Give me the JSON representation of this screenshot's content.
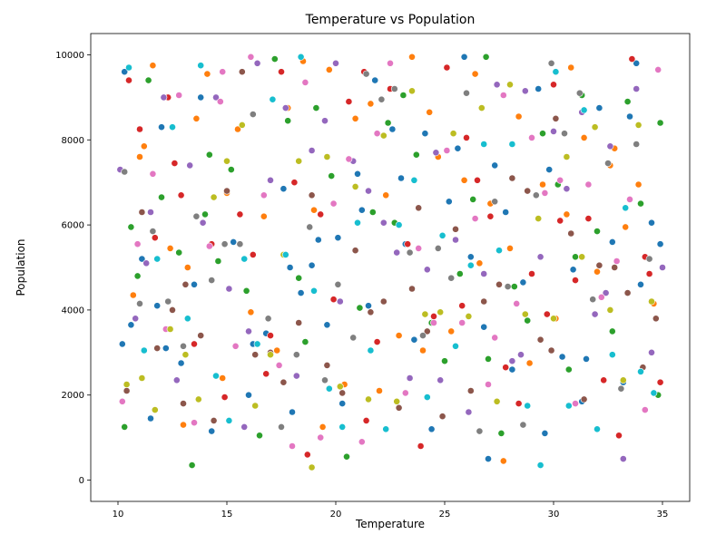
{
  "chart_data": {
    "type": "scatter",
    "title": "Temperature vs Population",
    "xlabel": "Temperature",
    "ylabel": "Population",
    "xlim": [
      8.75,
      36.25
    ],
    "ylim": [
      -500,
      10500
    ],
    "xticks": [
      10,
      15,
      20,
      25,
      30,
      35
    ],
    "yticks": [
      0,
      2000,
      4000,
      6000,
      8000,
      10000
    ],
    "grid": false,
    "legend": "none",
    "colors": [
      "#1f77b4",
      "#ff7f0e",
      "#2ca02c",
      "#d62728",
      "#9467bd",
      "#8c564b",
      "#e377c2",
      "#7f7f7f",
      "#bcbd22",
      "#17becf"
    ],
    "series": [
      {
        "x": [
          10.2,
          10.3,
          10.6,
          11.1,
          11.5,
          12.2,
          12.9,
          13.5,
          13.8,
          14.3,
          15.3,
          16.0,
          16.2,
          17.6,
          17.9,
          18.4,
          18.9,
          19.2,
          19.6,
          20.3,
          21.0,
          21.5,
          21.8,
          22.6,
          23.2,
          23.6,
          24.1,
          24.4,
          25.2,
          25.6,
          26.2,
          26.8,
          27.3,
          27.8,
          28.1,
          28.6,
          29.3,
          29.8,
          30.4,
          30.9,
          31.3,
          32.1,
          32.7,
          33.2,
          33.8,
          34.5,
          34.9,
          12.0,
          18.0,
          23.0,
          27.0,
          31.5,
          16.8,
          21.2,
          25.9,
          29.6,
          33.5,
          11.8,
          20.1,
          34.0
        ],
        "y": [
          3200,
          9600,
          3650,
          5200,
          1450,
          3100,
          2750,
          4600,
          9000,
          1150,
          5600,
          2000,
          3200,
          6850,
          5000,
          4400,
          5050,
          5650,
          3650,
          1800,
          7200,
          4100,
          9400,
          8250,
          5550,
          3300,
          8150,
          1200,
          6550,
          7800,
          5250,
          3600,
          7400,
          6300,
          2600,
          4650,
          9200,
          7300,
          2900,
          4950,
          1850,
          8750,
          5600,
          2300,
          9800,
          6050,
          5550,
          8300,
          1600,
          7100,
          500,
          2850,
          3450,
          6350,
          9950,
          1100,
          8550,
          4100,
          5700,
          4600
        ]
      },
      {
        "x": [
          10.7,
          11.2,
          11.6,
          12.4,
          13.0,
          13.6,
          14.1,
          14.8,
          15.5,
          16.1,
          16.7,
          17.3,
          17.8,
          18.5,
          19.0,
          19.7,
          20.4,
          20.9,
          21.6,
          22.3,
          22.9,
          23.5,
          24.0,
          24.7,
          25.3,
          25.9,
          26.6,
          27.1,
          27.7,
          28.4,
          28.9,
          29.5,
          30.1,
          30.8,
          31.4,
          32.0,
          32.6,
          33.3,
          33.9,
          34.6,
          11.0,
          15.0,
          19.4,
          24.3,
          28.0,
          32.8,
          13.2,
          22.0,
          26.4,
          30.6
        ],
        "y": [
          4350,
          7850,
          9750,
          5450,
          1300,
          8500,
          9550,
          2400,
          8250,
          3950,
          6200,
          3050,
          8750,
          9850,
          6350,
          9650,
          2250,
          8500,
          8850,
          6700,
          3400,
          9950,
          3050,
          7600,
          3500,
          7050,
          5100,
          6500,
          450,
          8550,
          2750,
          6950,
          3800,
          9700,
          8050,
          4900,
          7400,
          5950,
          6950,
          4150,
          7600,
          6750,
          1250,
          8650,
          5450,
          7800,
          5000,
          2100,
          9550,
          6250
        ]
      },
      {
        "x": [
          10.3,
          10.9,
          11.4,
          12.0,
          12.8,
          13.4,
          14.0,
          14.6,
          15.2,
          15.9,
          16.5,
          17.2,
          17.8,
          18.3,
          19.1,
          19.8,
          20.5,
          21.1,
          21.7,
          22.4,
          23.1,
          23.7,
          24.4,
          25.0,
          25.7,
          26.3,
          26.9,
          27.6,
          28.2,
          28.8,
          29.5,
          30.2,
          30.7,
          31.3,
          32.0,
          32.7,
          33.4,
          34.0,
          34.8,
          10.6,
          14.2,
          18.6,
          22.7,
          27.0,
          31.0,
          34.9
        ],
        "y": [
          1250,
          4800,
          9400,
          6650,
          5350,
          350,
          6250,
          5150,
          7300,
          4450,
          1050,
          9900,
          8450,
          4750,
          8750,
          7150,
          550,
          4050,
          6300,
          8400,
          9050,
          7650,
          3700,
          2800,
          4850,
          6600,
          9950,
          1100,
          4550,
          3750,
          8150,
          6950,
          2600,
          9050,
          5850,
          3500,
          8900,
          6500,
          2000,
          5950,
          7650,
          3250,
          6050,
          2850,
          5250,
          8400
        ]
      },
      {
        "x": [
          10.5,
          11.0,
          11.7,
          12.3,
          12.9,
          13.5,
          14.3,
          14.9,
          15.6,
          16.2,
          16.8,
          17.5,
          18.1,
          18.7,
          19.3,
          19.9,
          20.6,
          21.3,
          21.9,
          22.5,
          23.3,
          23.9,
          24.5,
          25.1,
          25.8,
          26.5,
          27.1,
          27.8,
          28.4,
          29.0,
          29.7,
          30.3,
          31.0,
          31.6,
          32.3,
          33.0,
          33.6,
          34.2,
          34.9,
          12.6,
          17.0,
          21.4,
          26.0,
          30.0,
          34.4
        ],
        "y": [
          9400,
          8250,
          5700,
          9000,
          6700,
          3200,
          5550,
          1950,
          6250,
          5300,
          2500,
          9600,
          7000,
          600,
          6250,
          4250,
          8900,
          9600,
          3250,
          9200,
          5550,
          800,
          3850,
          9700,
          4100,
          7050,
          6200,
          2650,
          1800,
          4850,
          3900,
          6100,
          4700,
          6150,
          2350,
          1050,
          9900,
          5250,
          2300,
          7450,
          3400,
          1400,
          8050,
          9300,
          4850
        ]
      },
      {
        "x": [
          10.1,
          10.8,
          11.3,
          12.1,
          12.7,
          13.3,
          13.9,
          14.5,
          15.1,
          15.8,
          16.4,
          17.0,
          17.7,
          18.2,
          18.9,
          19.5,
          20.2,
          20.8,
          21.5,
          22.2,
          22.8,
          23.4,
          24.2,
          24.8,
          25.5,
          26.1,
          26.8,
          27.4,
          28.1,
          28.7,
          29.4,
          30.0,
          30.6,
          31.3,
          31.9,
          32.6,
          33.2,
          33.8,
          34.5,
          11.5,
          16.0,
          20.0,
          24.6,
          28.5,
          32.4,
          35.0
        ],
        "y": [
          7300,
          3800,
          5100,
          9000,
          2350,
          7400,
          6050,
          9000,
          4500,
          1250,
          9800,
          7050,
          8750,
          2450,
          7750,
          8450,
          4200,
          7500,
          6800,
          6050,
          5350,
          2400,
          4950,
          2350,
          5650,
          1600,
          4850,
          9300,
          2800,
          9150,
          5250,
          8200,
          6850,
          8650,
          3900,
          7850,
          500,
          9200,
          3000,
          6300,
          3500,
          9800,
          7700,
          2950,
          4400,
          5000
        ]
      },
      {
        "x": [
          10.4,
          11.1,
          11.8,
          12.5,
          13.1,
          13.8,
          14.4,
          15.0,
          15.7,
          16.3,
          17.0,
          17.6,
          18.3,
          18.9,
          19.6,
          20.3,
          20.9,
          21.6,
          22.2,
          22.9,
          23.5,
          24.2,
          24.9,
          25.5,
          26.2,
          26.8,
          27.5,
          28.1,
          28.8,
          29.4,
          30.1,
          30.8,
          31.4,
          32.1,
          32.8,
          33.4,
          34.1,
          34.7,
          13.0,
          23.8,
          29.9
        ],
        "y": [
          2100,
          6300,
          3100,
          4000,
          4600,
          3400,
          1400,
          6800,
          9600,
          2950,
          3000,
          2300,
          3700,
          6700,
          2700,
          2050,
          5400,
          3950,
          4200,
          1700,
          4500,
          3500,
          1500,
          5900,
          2100,
          4200,
          4600,
          7100,
          6800,
          3300,
          8500,
          5800,
          1900,
          5050,
          5000,
          4400,
          2650,
          3800,
          1800,
          6400,
          3050
        ]
      },
      {
        "x": [
          10.2,
          10.9,
          11.6,
          12.2,
          12.8,
          13.5,
          14.2,
          14.8,
          15.4,
          16.1,
          16.7,
          17.4,
          18.0,
          18.6,
          19.3,
          19.9,
          20.6,
          21.2,
          21.9,
          22.5,
          23.2,
          23.8,
          24.5,
          25.1,
          25.8,
          26.4,
          27.0,
          27.7,
          28.3,
          29.0,
          29.6,
          30.3,
          31.0,
          31.6,
          32.2,
          32.9,
          33.5,
          34.2,
          34.8,
          14.7,
          27.3
        ],
        "y": [
          1850,
          5550,
          7200,
          3550,
          9050,
          1350,
          5500,
          9600,
          3150,
          9950,
          6700,
          2700,
          800,
          9350,
          1000,
          6500,
          7550,
          900,
          8150,
          9800,
          2050,
          5450,
          3700,
          7750,
          3700,
          6150,
          2250,
          9050,
          4150,
          8050,
          6750,
          7050,
          1800,
          6950,
          4300,
          5150,
          6600,
          1650,
          9650,
          8900,
          3350
        ]
      },
      {
        "x": [
          10.3,
          11.0,
          11.6,
          12.3,
          13.0,
          13.6,
          14.3,
          14.9,
          15.6,
          16.2,
          16.9,
          17.5,
          18.2,
          18.8,
          19.5,
          20.1,
          20.8,
          21.4,
          22.1,
          22.7,
          23.4,
          24.0,
          24.7,
          25.3,
          26.0,
          26.6,
          27.3,
          27.9,
          28.6,
          29.2,
          29.9,
          30.5,
          31.2,
          31.8,
          32.5,
          33.1,
          33.8,
          34.4
        ],
        "y": [
          7250,
          4150,
          5850,
          4200,
          3150,
          6200,
          4700,
          5550,
          5550,
          8600,
          3800,
          1250,
          2950,
          5950,
          2350,
          4600,
          3350,
          9550,
          8950,
          9200,
          5350,
          3400,
          5450,
          4750,
          9100,
          1150,
          6550,
          4550,
          1300,
          6700,
          9800,
          8150,
          9100,
          4250,
          7450,
          2150,
          7900,
          5200
        ]
      },
      {
        "x": [
          10.4,
          11.1,
          11.7,
          12.4,
          13.1,
          13.7,
          14.4,
          15.0,
          15.7,
          16.3,
          17.0,
          17.6,
          18.3,
          18.9,
          19.6,
          20.2,
          20.9,
          21.5,
          22.2,
          22.8,
          23.5,
          24.1,
          24.8,
          25.4,
          26.1,
          26.7,
          27.4,
          28.0,
          28.7,
          29.3,
          30.0,
          30.6,
          31.3,
          31.9,
          32.6,
          33.2,
          33.9,
          34.5
        ],
        "y": [
          2250,
          2400,
          1650,
          3550,
          2950,
          1900,
          6650,
          7500,
          8350,
          1750,
          2950,
          5300,
          7500,
          300,
          7600,
          2200,
          6900,
          1900,
          8100,
          1850,
          9150,
          3900,
          3950,
          8150,
          3850,
          8750,
          1850,
          9300,
          3900,
          6150,
          3800,
          7600,
          5250,
          8300,
          4000,
          2350,
          8350,
          4200
        ]
      },
      {
        "x": [
          10.5,
          11.2,
          11.8,
          12.5,
          13.2,
          13.8,
          14.5,
          15.1,
          15.8,
          16.4,
          17.1,
          17.7,
          18.4,
          19.0,
          19.7,
          20.3,
          21.0,
          21.6,
          22.3,
          22.9,
          23.6,
          24.2,
          24.9,
          25.5,
          26.2,
          26.8,
          27.5,
          28.1,
          28.8,
          29.4,
          30.1,
          30.7,
          31.4,
          32.0,
          32.7,
          33.3,
          34.0,
          34.6
        ],
        "y": [
          9700,
          3050,
          5200,
          8300,
          3800,
          9750,
          2450,
          1400,
          5200,
          3200,
          8950,
          5300,
          9950,
          4450,
          2150,
          1250,
          6050,
          3050,
          1200,
          6000,
          7050,
          1950,
          5750,
          3150,
          5050,
          7900,
          5400,
          7900,
          1750,
          350,
          9600,
          1750,
          8700,
          1200,
          2950,
          6400,
          2550,
          2050
        ]
      }
    ]
  }
}
